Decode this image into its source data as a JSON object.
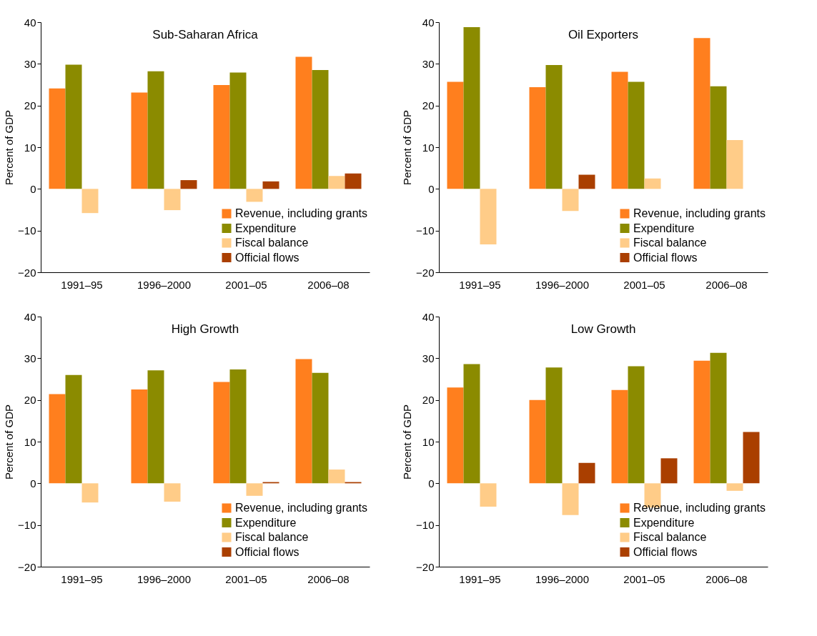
{
  "chart_data": [
    {
      "type": "bar",
      "title": "Sub-Saharan Africa",
      "ylabel": "Percent of GDP",
      "categories": [
        "1991–95",
        "1996–2000",
        "2001–05",
        "2006–08"
      ],
      "ylim": [
        -20,
        40
      ],
      "yticks": [
        -20,
        -10,
        0,
        10,
        20,
        30,
        40
      ],
      "legend": "bottom right",
      "series": [
        {
          "name": "Revenue, including grants",
          "color": "#ff7f1e",
          "values": [
            24.1,
            23.1,
            24.9,
            31.7
          ]
        },
        {
          "name": "Expenditure",
          "color": "#8b8b00",
          "values": [
            29.8,
            28.2,
            27.9,
            28.5
          ]
        },
        {
          "name": "Fiscal balance",
          "color": "#ffcc88",
          "values": [
            -5.8,
            -5.1,
            -3.1,
            3.1
          ]
        },
        {
          "name": "Official flows",
          "color": "#aa3f00",
          "values": [
            null,
            2.1,
            1.8,
            3.7
          ]
        }
      ]
    },
    {
      "type": "bar",
      "title": "Oil Exporters",
      "ylabel": "Percent of GDP",
      "categories": [
        "1991–95",
        "1996–2000",
        "2001–05",
        "2006–08"
      ],
      "ylim": [
        -20,
        40
      ],
      "yticks": [
        -20,
        -10,
        0,
        10,
        20,
        30,
        40
      ],
      "legend": "bottom right",
      "series": [
        {
          "name": "Revenue, including grants",
          "color": "#ff7f1e",
          "values": [
            25.7,
            24.4,
            28.1,
            36.2
          ]
        },
        {
          "name": "Expenditure",
          "color": "#8b8b00",
          "values": [
            38.8,
            29.7,
            25.7,
            24.6
          ]
        },
        {
          "name": "Fiscal balance",
          "color": "#ffcc88",
          "values": [
            -13.3,
            -5.3,
            2.5,
            11.7
          ]
        },
        {
          "name": "Official flows",
          "color": "#aa3f00",
          "values": [
            null,
            3.4,
            null,
            null
          ]
        }
      ]
    },
    {
      "type": "bar",
      "title": "High Growth",
      "ylabel": "Percent of GDP",
      "categories": [
        "1991–95",
        "1996–2000",
        "2001–05",
        "2006–08"
      ],
      "ylim": [
        -20,
        40
      ],
      "yticks": [
        -20,
        -10,
        0,
        10,
        20,
        30,
        40
      ],
      "legend": "bottom right",
      "series": [
        {
          "name": "Revenue, including grants",
          "color": "#ff7f1e",
          "values": [
            21.4,
            22.5,
            24.3,
            29.8
          ]
        },
        {
          "name": "Expenditure",
          "color": "#8b8b00",
          "values": [
            26.0,
            27.1,
            27.3,
            26.5
          ]
        },
        {
          "name": "Fiscal balance",
          "color": "#ffcc88",
          "values": [
            -4.6,
            -4.4,
            -3.0,
            3.3
          ]
        },
        {
          "name": "Official flows",
          "color": "#aa3f00",
          "values": [
            null,
            null,
            0.3,
            0.3
          ]
        }
      ]
    },
    {
      "type": "bar",
      "title": "Low Growth",
      "ylabel": "Percent of GDP",
      "categories": [
        "1991–95",
        "1996–2000",
        "2001–05",
        "2006–08"
      ],
      "ylim": [
        -20,
        40
      ],
      "yticks": [
        -20,
        -10,
        0,
        10,
        20,
        30,
        40
      ],
      "legend": "bottom right",
      "series": [
        {
          "name": "Revenue, including grants",
          "color": "#ff7f1e",
          "values": [
            23.0,
            20.0,
            22.4,
            29.4
          ]
        },
        {
          "name": "Expenditure",
          "color": "#8b8b00",
          "values": [
            28.6,
            27.8,
            28.1,
            31.3
          ]
        },
        {
          "name": "Fiscal balance",
          "color": "#ffcc88",
          "values": [
            -5.6,
            -7.6,
            -5.8,
            -1.8
          ]
        },
        {
          "name": "Official flows",
          "color": "#aa3f00",
          "values": [
            null,
            4.9,
            6.0,
            12.3
          ]
        }
      ]
    }
  ]
}
